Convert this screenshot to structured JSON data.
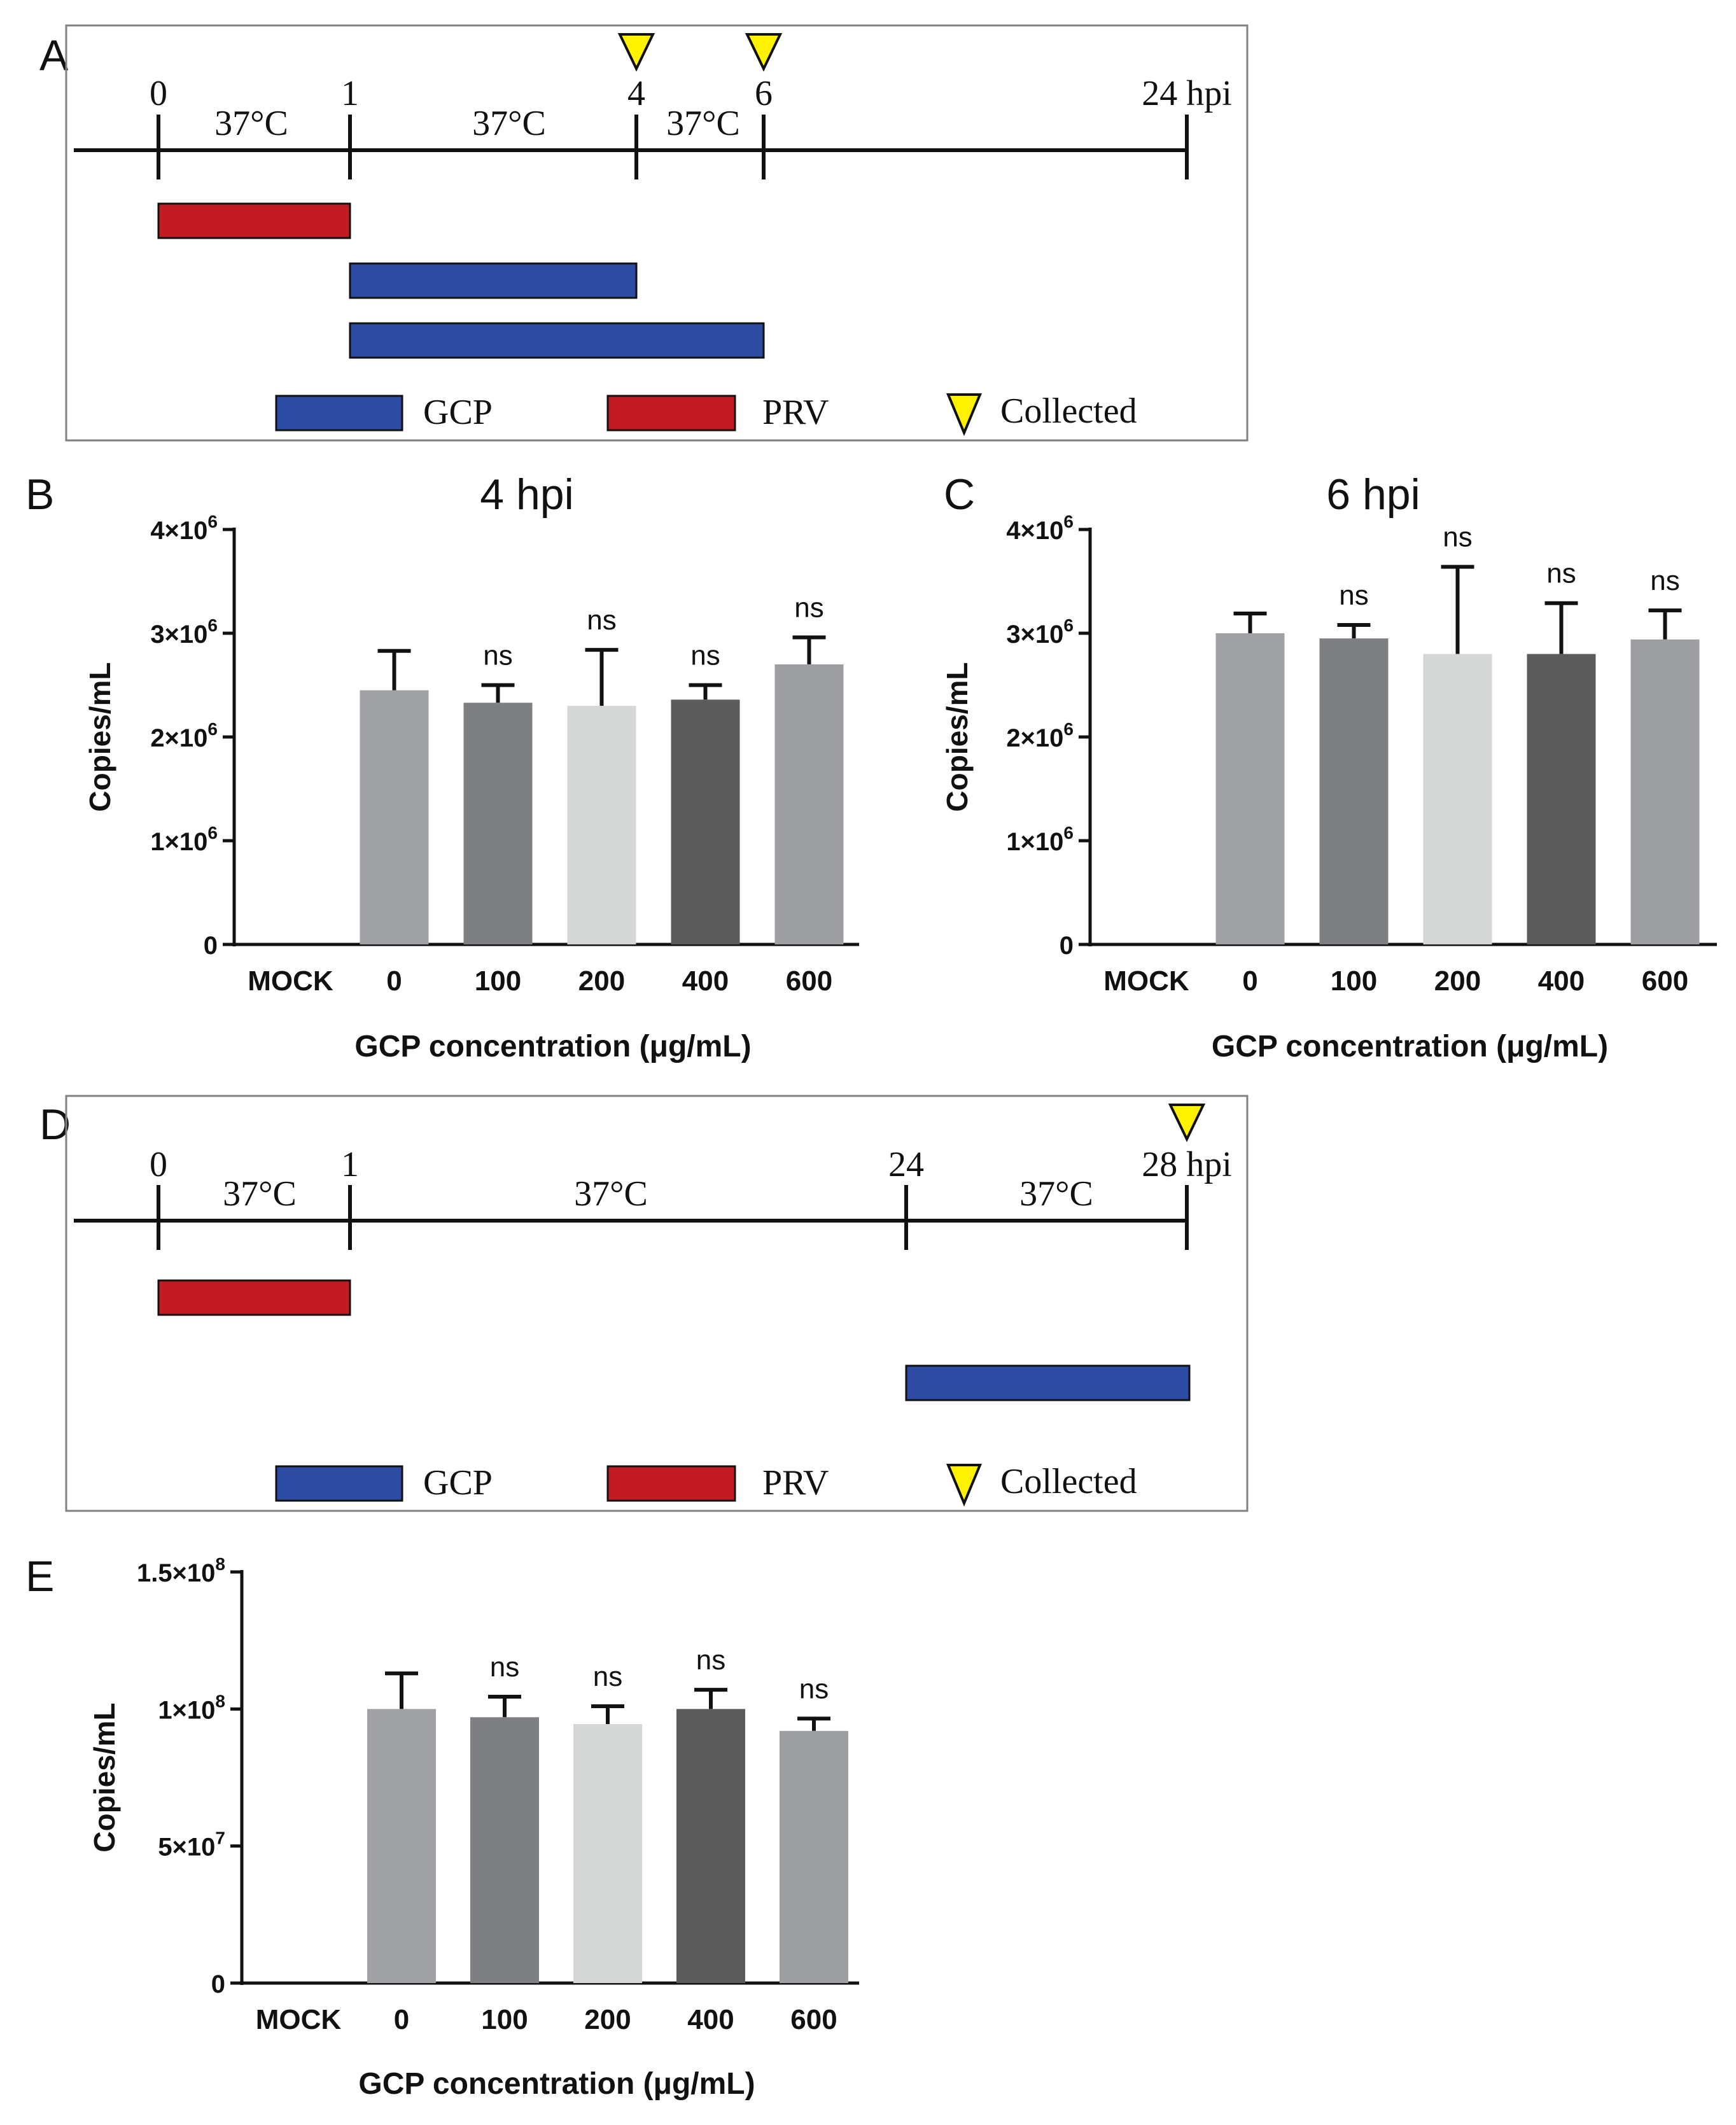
{
  "colors": {
    "prv": "#c41a22",
    "gcp": "#2e4ba3",
    "marker": "#fff200",
    "axis": "#111111",
    "box": "#808080",
    "bar_shades": [
      "#a0a1a5",
      "#7e7f82",
      "#d5d6d6",
      "#5b5b5c",
      "#9c9ea1"
    ]
  },
  "timelines": [
    {
      "panel": "A",
      "ticks": [
        "0",
        "1",
        "4",
        "6",
        "24 hpi"
      ],
      "temps": [
        "37°C",
        "37°C",
        "37°C"
      ],
      "bars": [
        {
          "label": "PRV",
          "start": 0,
          "end": 1
        },
        {
          "label": "GCP",
          "start": 1,
          "end": 4
        },
        {
          "label": "GCP",
          "start": 1,
          "end": 6
        }
      ],
      "collected_at": [
        "4",
        "6"
      ],
      "legend": {
        "gcp": "GCP",
        "prv": "PRV",
        "collected": "Collected"
      }
    },
    {
      "panel": "D",
      "ticks": [
        "0",
        "1",
        "24",
        "28 hpi"
      ],
      "temps": [
        "37°C",
        "37°C",
        "37°C"
      ],
      "bars": [
        {
          "label": "PRV",
          "start": 0,
          "end": 1
        },
        {
          "label": "GCP",
          "start": 24,
          "end": 28
        }
      ],
      "collected_at": [
        "28 hpi"
      ],
      "legend": {
        "gcp": "GCP",
        "prv": "PRV",
        "collected": "Collected"
      }
    }
  ],
  "chart_data": [
    {
      "panel": "B",
      "type": "bar",
      "title": "4 hpi",
      "xlabel": "GCP concentration (μg/mL)",
      "ylabel": "Copies/mL",
      "ylim": [
        0,
        4000000
      ],
      "yticks": [
        0,
        1000000,
        2000000,
        3000000,
        4000000
      ],
      "ytick_labels": [
        {
          "mant": "0",
          "exp": ""
        },
        {
          "mant": "1×10",
          "exp": "6"
        },
        {
          "mant": "2×10",
          "exp": "6"
        },
        {
          "mant": "3×10",
          "exp": "6"
        },
        {
          "mant": "4×10",
          "exp": "6"
        }
      ],
      "categories": [
        "MOCK",
        "0",
        "100",
        "200",
        "400",
        "600"
      ],
      "values": [
        0,
        2450000,
        2330000,
        2300000,
        2360000,
        2700000
      ],
      "errors": [
        0,
        380000,
        170000,
        540000,
        140000,
        260000
      ],
      "annotations": [
        "",
        "",
        "ns",
        "ns",
        "ns",
        "ns"
      ]
    },
    {
      "panel": "C",
      "type": "bar",
      "title": "6 hpi",
      "xlabel": "GCP concentration (μg/mL)",
      "ylabel": "Copies/mL",
      "ylim": [
        0,
        4000000
      ],
      "yticks": [
        0,
        1000000,
        2000000,
        3000000,
        4000000
      ],
      "ytick_labels": [
        {
          "mant": "0",
          "exp": ""
        },
        {
          "mant": "1×10",
          "exp": "6"
        },
        {
          "mant": "2×10",
          "exp": "6"
        },
        {
          "mant": "3×10",
          "exp": "6"
        },
        {
          "mant": "4×10",
          "exp": "6"
        }
      ],
      "categories": [
        "MOCK",
        "0",
        "100",
        "200",
        "400",
        "600"
      ],
      "values": [
        0,
        3000000,
        2950000,
        2800000,
        2800000,
        2940000
      ],
      "errors": [
        0,
        190000,
        130000,
        840000,
        490000,
        280000
      ],
      "annotations": [
        "",
        "",
        "ns",
        "ns",
        "ns",
        "ns"
      ]
    },
    {
      "panel": "E",
      "type": "bar",
      "title": "",
      "xlabel": "GCP concentration (μg/mL)",
      "ylabel": "Copies/mL",
      "ylim": [
        0,
        150000000
      ],
      "yticks": [
        0,
        50000000,
        100000000,
        150000000
      ],
      "ytick_labels": [
        {
          "mant": "0",
          "exp": ""
        },
        {
          "mant": "5×10",
          "exp": "7"
        },
        {
          "mant": "1×10",
          "exp": "8"
        },
        {
          "mant": "1.5×10",
          "exp": "8"
        }
      ],
      "categories": [
        "MOCK",
        "0",
        "100",
        "200",
        "400",
        "600"
      ],
      "values": [
        0,
        100000000,
        97000000,
        94500000,
        100000000,
        92000000
      ],
      "errors": [
        0,
        13000000,
        7500000,
        6500000,
        7000000,
        4500000
      ],
      "annotations": [
        "",
        "",
        "ns",
        "ns",
        "ns",
        "ns"
      ]
    }
  ]
}
